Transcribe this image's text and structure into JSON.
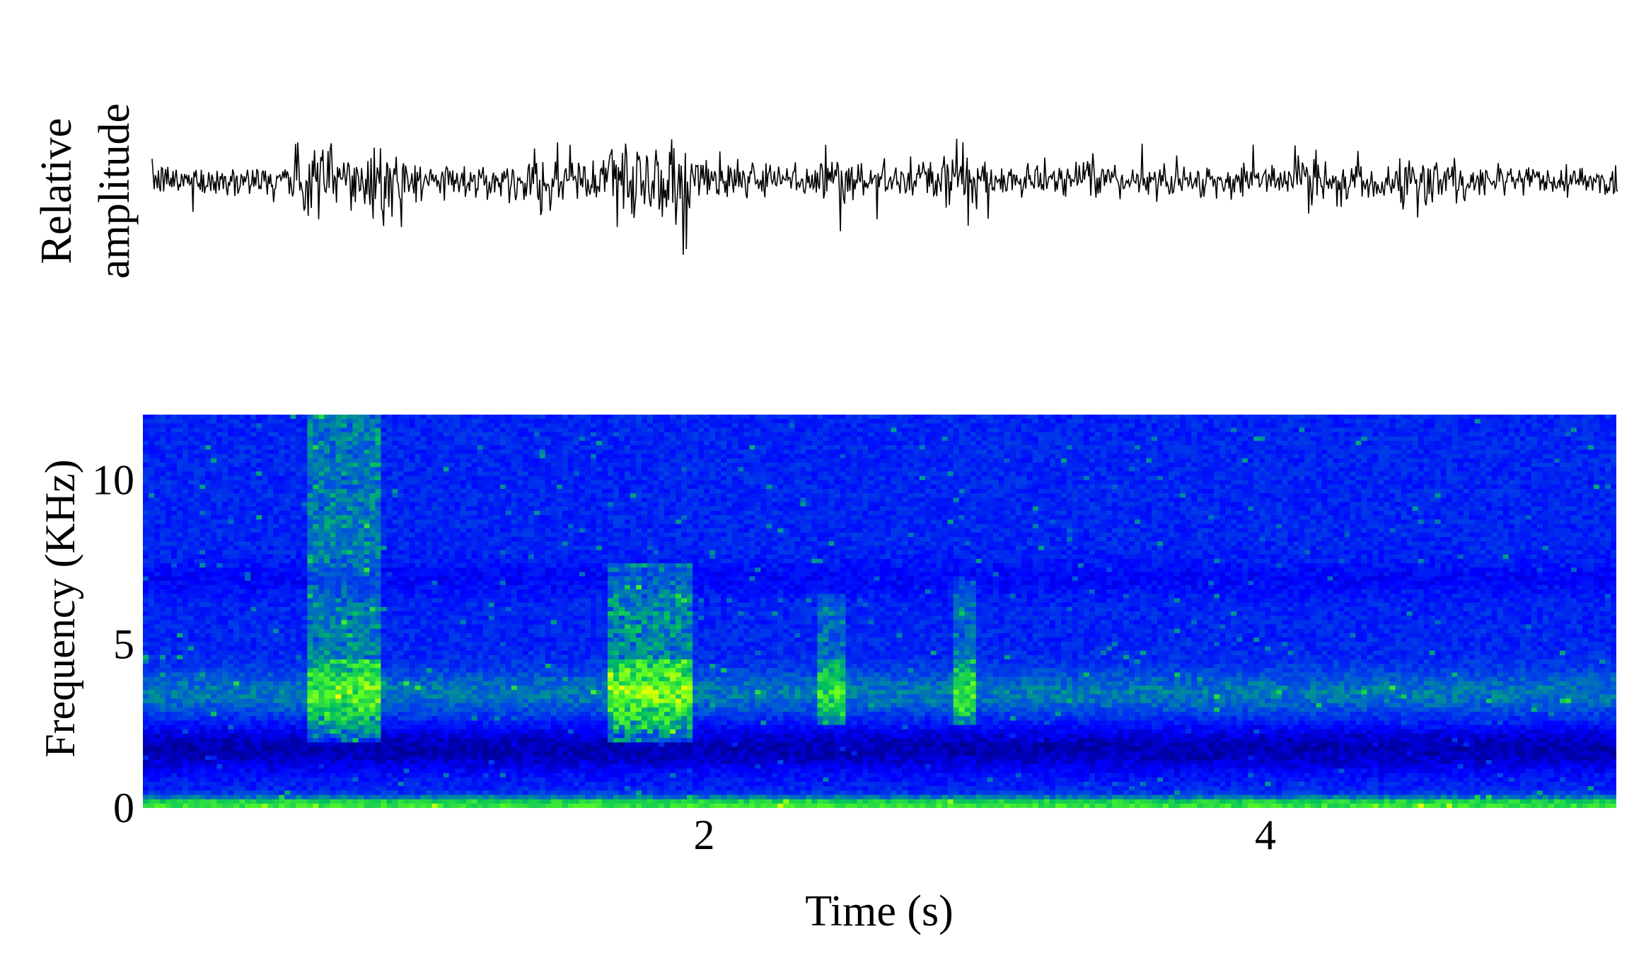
{
  "chart_data": [
    {
      "type": "line",
      "panel": "waveform",
      "ylabel_lines": [
        "Relative",
        "amplitude"
      ],
      "xlim": [
        0,
        5.25
      ],
      "y_axis_ticks": "none",
      "description_of_data": "noisy oscillogram with loud bursts",
      "bursts": [
        {
          "t": 0.6,
          "amplitude": 1.0
        },
        {
          "t": 0.8,
          "amplitude": 0.9
        },
        {
          "t": 1.45,
          "amplitude": 0.55
        },
        {
          "t": 1.7,
          "amplitude": 0.95
        },
        {
          "t": 1.9,
          "amplitude": 0.95
        },
        {
          "t": 2.45,
          "amplitude": 0.6
        },
        {
          "t": 2.9,
          "amplitude": 0.65
        },
        {
          "t": 4.2,
          "amplitude": 0.45
        },
        {
          "t": 4.6,
          "amplitude": 0.55
        }
      ],
      "background_amplitude": 0.25,
      "color": "#000000"
    },
    {
      "type": "heatmap",
      "panel": "spectrogram",
      "xlabel": "Time (s)",
      "ylabel": "Frequency (KHz)",
      "xlim": [
        0,
        5.25
      ],
      "ylim": [
        0,
        12
      ],
      "x_ticks": [
        "2",
        "4"
      ],
      "x_tick_values": [
        2,
        4
      ],
      "y_ticks": [
        "0",
        "5",
        "10"
      ],
      "y_tick_values": [
        0,
        5,
        10
      ],
      "colormap": [
        "#00008b",
        "#0000ff",
        "#0050e0",
        "#00c060",
        "#60ff20",
        "#ffff00"
      ],
      "events": [
        {
          "t_start": 0.58,
          "t_end": 0.85,
          "f_low": 2,
          "f_high": 12,
          "intensity": 0.7
        },
        {
          "t_start": 1.66,
          "t_end": 1.95,
          "f_low": 2,
          "f_high": 7.5,
          "intensity": 0.8
        },
        {
          "t_start": 2.4,
          "t_end": 2.5,
          "f_low": 2.5,
          "f_high": 6.5,
          "intensity": 0.55
        },
        {
          "t_start": 2.88,
          "t_end": 2.97,
          "f_low": 2.5,
          "f_high": 7,
          "intensity": 0.6
        }
      ],
      "bands": [
        {
          "f": 0.1,
          "intensity": 0.95
        },
        {
          "f": 3.5,
          "intensity": 0.4
        },
        {
          "f": 1.8,
          "intensity": -0.5
        }
      ]
    }
  ]
}
